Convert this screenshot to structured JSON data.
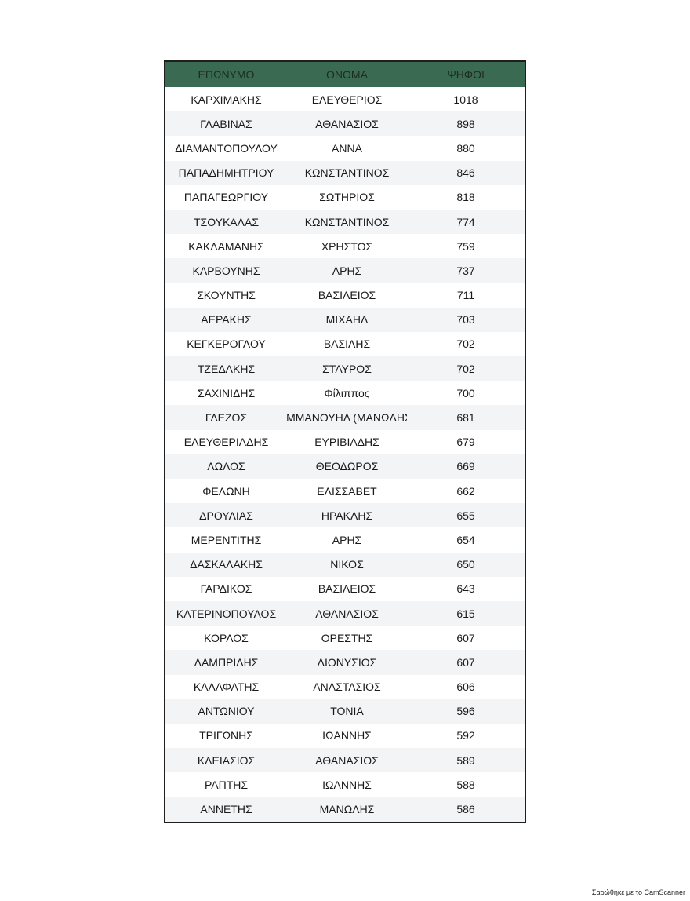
{
  "table": {
    "headers": [
      "ΕΠΩΝΥΜΟ",
      "ΟΝΟΜΑ",
      "ΨΗΦΟΙ"
    ],
    "header_color": "#3b6a53",
    "rows": [
      [
        "ΚΑΡΧΙΜΑΚΗΣ",
        "ΕΛΕΥΘΕΡΙΟΣ",
        "1018"
      ],
      [
        "ΓΛΑΒΙΝΑΣ",
        "ΑΘΑΝΑΣΙΟΣ",
        "898"
      ],
      [
        "ΔΙΑΜΑΝΤΟΠΟΥΛΟΥ",
        "ΑΝΝΑ",
        "880"
      ],
      [
        "ΠΑΠΑΔΗΜΗΤΡΙΟΥ",
        "ΚΩΝΣΤΑΝΤΙΝΟΣ",
        "846"
      ],
      [
        "ΠΑΠΑΓΕΩΡΓΙΟΥ",
        "ΣΩΤΗΡΙΟΣ",
        "818"
      ],
      [
        "ΤΣΟΥΚΑΛΑΣ",
        "ΚΩΝΣΤΑΝΤΙΝΟΣ",
        "774"
      ],
      [
        "ΚΑΚΛΑΜΑΝΗΣ",
        "ΧΡΗΣΤΟΣ",
        "759"
      ],
      [
        "ΚΑΡΒΟΥΝΗΣ",
        "ΑΡΗΣ",
        "737"
      ],
      [
        "ΣΚΟΥΝΤΗΣ",
        "ΒΑΣΙΛΕΙΟΣ",
        "711"
      ],
      [
        "ΑΕΡΑΚΗΣ",
        "ΜΙΧΑΗΛ",
        "703"
      ],
      [
        "ΚΕΓΚΕΡΟΓΛΟΥ",
        "ΒΑΣΙΛΗΣ",
        "702"
      ],
      [
        "ΤΖΕΔΑΚΗΣ",
        "ΣΤΑΥΡΟΣ",
        "702"
      ],
      [
        "ΣΑΧΙΝΙΔΗΣ",
        "Φίλιππος",
        "700"
      ],
      [
        "ΓΛΕΖΟΣ",
        "ΕΜΜΑΝΟΥΗΛ (ΜΑΝΩΛΗΣ)",
        "681"
      ],
      [
        "ΕΛΕΥΘΕΡΙΑΔΗΣ",
        "ΕΥΡΙΒΙΑΔΗΣ",
        "679"
      ],
      [
        "ΛΩΛΟΣ",
        "ΘΕΟΔΩΡΟΣ",
        "669"
      ],
      [
        "ΦΕΛΩΝΗ",
        "ΕΛΙΣΣΑΒΕΤ",
        "662"
      ],
      [
        "ΔΡΟΥΛΙΑΣ",
        "ΗΡΑΚΛΗΣ",
        "655"
      ],
      [
        "ΜΕΡΕΝΤΙΤΗΣ",
        "ΑΡΗΣ",
        "654"
      ],
      [
        "ΔΑΣΚΑΛΑΚΗΣ",
        "ΝΙΚΟΣ",
        "650"
      ],
      [
        "ΓΑΡΔΙΚΟΣ",
        "ΒΑΣΙΛΕΙΟΣ",
        "643"
      ],
      [
        "ΚΑΤΕΡΙΝΟΠΟΥΛΟΣ",
        "ΑΘΑΝΑΣΙΟΣ",
        "615"
      ],
      [
        "ΚΟΡΛΟΣ",
        "ΟΡΕΣΤΗΣ",
        "607"
      ],
      [
        "ΛΑΜΠΡΙΔΗΣ",
        "ΔΙΟΝΥΣΙΟΣ",
        "607"
      ],
      [
        "ΚΑΛΑΦΑΤΗΣ",
        "ΑΝΑΣΤΑΣΙΟΣ",
        "606"
      ],
      [
        "ΑΝΤΩΝΙΟΥ",
        "ΤΟΝΙΑ",
        "596"
      ],
      [
        "ΤΡΙΓΩΝΗΣ",
        "ΙΩΑΝΝΗΣ",
        "592"
      ],
      [
        "ΚΛΕΙΑΣΙΟΣ",
        "ΑΘΑΝΑΣΙΟΣ",
        "589"
      ],
      [
        "ΡΑΠΤΗΣ",
        "ΙΩΑΝΝΗΣ",
        "588"
      ],
      [
        "ΑΝΝΕΤΗΣ",
        "ΜΑΝΩΛΗΣ",
        "586"
      ]
    ]
  },
  "footer": "Σαρώθηκε με το CamScanner"
}
